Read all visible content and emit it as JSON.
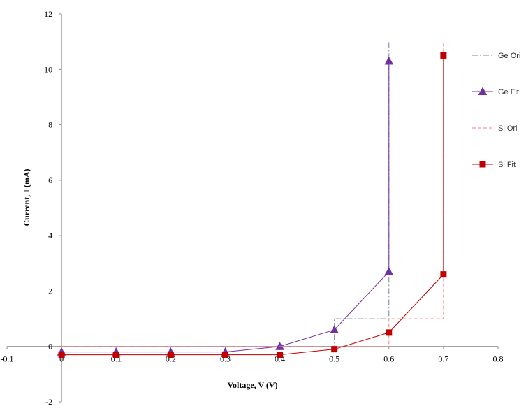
{
  "chart_data": {
    "type": "line",
    "title": "",
    "xlabel": "Voltage, V (V)",
    "ylabel": "Current, I (mA)",
    "xlim": [
      -0.1,
      0.8
    ],
    "ylim": [
      -2,
      12
    ],
    "xticks": [
      -0.1,
      0,
      0.1,
      0.2,
      0.3,
      0.4,
      0.5,
      0.6,
      0.7,
      0.8
    ],
    "xtick_labels": [
      "-0.1",
      "0",
      "0.1",
      "0.2",
      "0.3",
      "0.4",
      "0.5",
      "0.6",
      "0.7",
      "0.8"
    ],
    "yticks": [
      -2,
      0,
      2,
      4,
      6,
      8,
      10,
      12
    ],
    "ytick_labels": [
      "-2",
      "0",
      "2",
      "4",
      "6",
      "8",
      "10",
      "12"
    ],
    "grid": false,
    "legend_position": "right",
    "series": [
      {
        "name": "Ge Ori",
        "style": "dash-dot",
        "marker": "none",
        "color": "#7f7f9f",
        "x": [
          0,
          0.5,
          0.5,
          0.6,
          0.6
        ],
        "y": [
          0,
          0,
          1,
          1,
          11
        ]
      },
      {
        "name": "Ge Fit",
        "style": "solid",
        "marker": "triangle",
        "color": "#7030a0",
        "x": [
          0,
          0.1,
          0.2,
          0.3,
          0.4,
          0.5,
          0.6,
          0.6
        ],
        "y": [
          -0.2,
          -0.2,
          -0.2,
          -0.2,
          0,
          0.6,
          2.7,
          10.3
        ]
      },
      {
        "name": "Si Ori",
        "style": "dashed",
        "marker": "none",
        "color": "#ff7f7f",
        "x": [
          0,
          0.6,
          0.6,
          0.7,
          0.7
        ],
        "y": [
          0,
          0,
          1,
          1,
          11
        ]
      },
      {
        "name": "Si Fit",
        "style": "solid",
        "marker": "square",
        "color": "#c00000",
        "x": [
          0,
          0.1,
          0.2,
          0.3,
          0.4,
          0.5,
          0.6,
          0.7,
          0.7
        ],
        "y": [
          -0.3,
          -0.3,
          -0.3,
          -0.3,
          -0.3,
          -0.1,
          0.5,
          2.6,
          10.5
        ]
      }
    ]
  }
}
